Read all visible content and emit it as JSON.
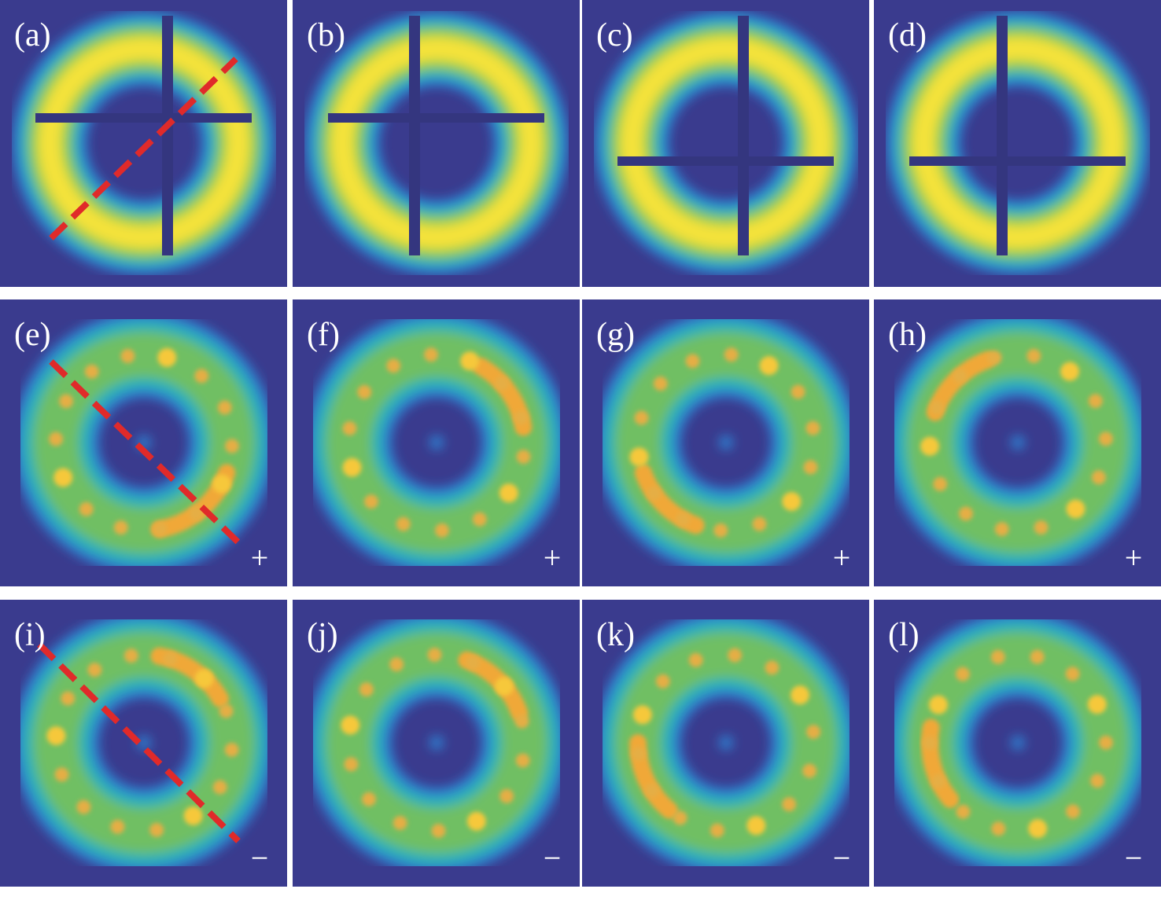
{
  "panels": [
    {
      "label": "(a)"
    },
    {
      "label": "(b)"
    },
    {
      "label": "(c)"
    },
    {
      "label": "(d)"
    },
    {
      "label": "(e)",
      "sign": "+"
    },
    {
      "label": "(f)",
      "sign": "+"
    },
    {
      "label": "(g)",
      "sign": "+"
    },
    {
      "label": "(h)",
      "sign": "+"
    },
    {
      "label": "(i)",
      "sign": "−"
    },
    {
      "label": "(j)",
      "sign": "−"
    },
    {
      "label": "(k)",
      "sign": "−"
    },
    {
      "label": "(l)",
      "sign": "−"
    }
  ]
}
